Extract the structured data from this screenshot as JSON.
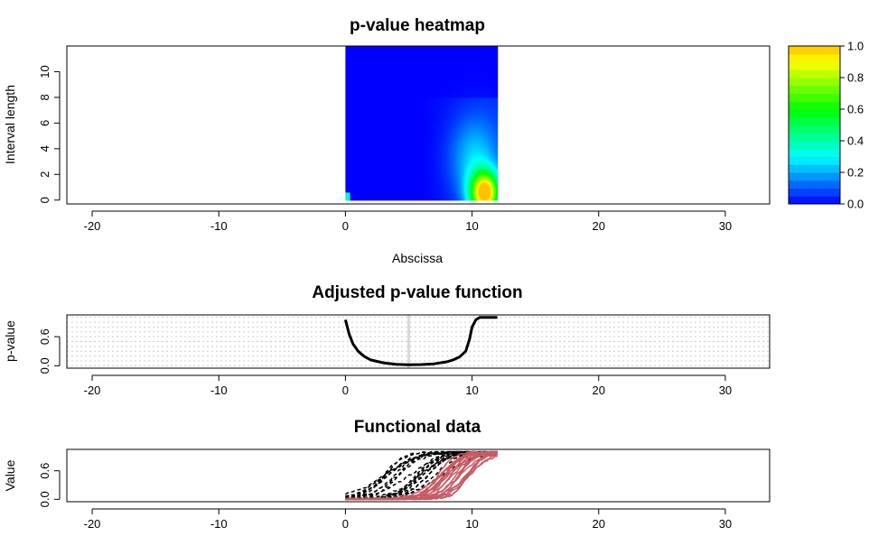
{
  "chart_data": [
    {
      "type": "heatmap",
      "title": "p-value heatmap",
      "xlabel": "Abscissa",
      "ylabel": "Interval length",
      "xlim": [
        -22,
        33.5
      ],
      "ylim": [
        -0.3,
        12
      ],
      "x_ticks": [
        -20,
        -10,
        0,
        10,
        20,
        30
      ],
      "y_ticks": [
        0,
        2,
        4,
        6,
        8,
        10
      ],
      "data_x_range": [
        0,
        12
      ],
      "data_y_range": [
        0,
        12
      ],
      "hotspot": {
        "x": 11,
        "y": 0.6,
        "max_value": 1.0
      },
      "colorbar": {
        "range": [
          0,
          1
        ],
        "ticks": [
          "0.0",
          "0.2",
          "0.4",
          "0.6",
          "0.8",
          "1.0"
        ],
        "colors": [
          "#0000ff",
          "#00ffff",
          "#00ff00",
          "#ffff00",
          "#ffc000"
        ]
      }
    },
    {
      "type": "line",
      "title": "Adjusted p-value function",
      "ylabel": "p-value",
      "xlim": [
        -22,
        33.5
      ],
      "ylim": [
        -0.05,
        1.05
      ],
      "x_ticks": [
        -20,
        -10,
        0,
        10,
        20,
        30
      ],
      "y_ticks": [
        "0.0",
        "0.6"
      ],
      "grid": true,
      "vline": 5,
      "x": [
        0,
        0.3,
        0.6,
        1,
        1.5,
        2,
        3,
        4,
        5,
        6,
        7,
        8,
        8.5,
        9,
        9.5,
        9.8,
        10,
        10.3,
        10.6,
        11,
        12
      ],
      "y": [
        0.95,
        0.65,
        0.45,
        0.3,
        0.19,
        0.12,
        0.06,
        0.03,
        0.02,
        0.025,
        0.04,
        0.08,
        0.12,
        0.18,
        0.3,
        0.55,
        0.8,
        0.95,
        1.0,
        1.0,
        1.0
      ]
    },
    {
      "type": "line",
      "title": "Functional data",
      "ylabel": "Value",
      "xlim": [
        -22,
        33.5
      ],
      "ylim": [
        -0.05,
        1.05
      ],
      "x_ticks": [
        -20,
        -10,
        0,
        10,
        20,
        30
      ],
      "y_ticks": [
        "0.0",
        "0.6"
      ],
      "x_domain": [
        0,
        12
      ],
      "groups": [
        {
          "color": "#000000",
          "dash": true,
          "count": 20,
          "midpoint_range": [
            3,
            8
          ],
          "slope_range": [
            0.7,
            1.3
          ]
        },
        {
          "color": "#c85a64",
          "dash": false,
          "count": 20,
          "midpoint_range": [
            7.2,
            10
          ],
          "slope_range": [
            0.9,
            1.7
          ]
        }
      ]
    }
  ]
}
